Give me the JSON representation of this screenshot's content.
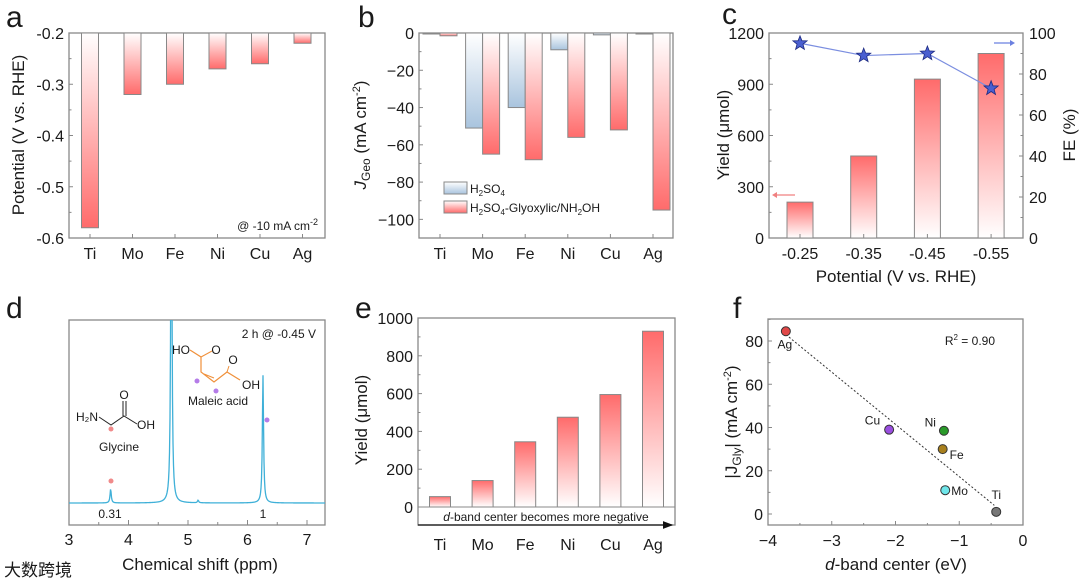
{
  "panel_letters": [
    "a",
    "b",
    "c",
    "d",
    "e",
    "f"
  ],
  "watermark": "大数跨境",
  "chart_data": [
    {
      "id": "a",
      "type": "bar",
      "categories": [
        "Ti",
        "Mo",
        "Fe",
        "Ni",
        "Cu",
        "Ag"
      ],
      "values": [
        -0.58,
        -0.32,
        -0.3,
        -0.27,
        -0.26,
        -0.22
      ],
      "ylabel": "Potential (V vs. RHE)",
      "ylim": [
        -0.6,
        -0.2
      ],
      "yticks": [
        "-0.2",
        "-0.3",
        "-0.4",
        "-0.5",
        "-0.6"
      ],
      "annotation": {
        "text": "@ -10 mA cm",
        "sup": "-2"
      }
    },
    {
      "id": "b",
      "type": "bar",
      "categories": [
        "Ti",
        "Mo",
        "Fe",
        "Ni",
        "Cu",
        "Ag"
      ],
      "series": [
        {
          "name": "H2SO4",
          "label_parts": [
            "H",
            "2",
            "SO",
            "4"
          ],
          "values": [
            -0.5,
            -51,
            -40,
            -9,
            -1,
            -0.5
          ],
          "color": "#a9c4de"
        },
        {
          "name": "H2SO4-Glyoxylic/NH2OH",
          "label_parts": [
            "H",
            "2",
            "SO",
            "4",
            "-Glyoxylic/NH",
            "2",
            "OH"
          ],
          "values": [
            -1.5,
            -65,
            -68,
            -56,
            -52,
            -95
          ],
          "color": "#ff6b6b"
        }
      ],
      "ylabel": {
        "main": "J",
        "sub": "Geo",
        "rest": " (mA cm",
        "sup": "-2",
        "end": ")"
      },
      "ylim": [
        -110,
        0
      ],
      "yticks": [
        "0",
        "−20",
        "−40",
        "−60",
        "−80",
        "−100"
      ],
      "legend": "bottom-left"
    },
    {
      "id": "c",
      "type": "bar+line",
      "categories": [
        "-0.25",
        "-0.35",
        "-0.45",
        "-0.55"
      ],
      "series": [
        {
          "name": "Yield",
          "axis": "left",
          "values": [
            210,
            480,
            930,
            1080
          ],
          "color": "#ff6b6b"
        },
        {
          "name": "FE",
          "axis": "right",
          "values": [
            95,
            89,
            90,
            73
          ],
          "color": "#4a5fd0"
        }
      ],
      "xlabel": "Potential (V vs. RHE)",
      "ylabel": "Yield (μmol)",
      "y2label": "FE (%)",
      "ylim": [
        0,
        1200
      ],
      "y2lim": [
        0,
        100
      ],
      "yticks": [
        "0",
        "300",
        "600",
        "900",
        "1200"
      ],
      "y2ticks": [
        "0",
        "20",
        "40",
        "60",
        "80",
        "100"
      ]
    },
    {
      "id": "d",
      "type": "line",
      "xlabel": "Chemical shift (ppm)",
      "xlim": [
        3,
        7.3
      ],
      "xticks": [
        "3",
        "4",
        "5",
        "6",
        "7"
      ],
      "peaks": [
        {
          "ppm": 3.7,
          "rel_height": 0.11
        },
        {
          "ppm": 4.72,
          "rel_height": 3.0
        },
        {
          "ppm": 5.17,
          "rel_height": 0.02
        },
        {
          "ppm": 6.26,
          "rel_height": 1.0
        }
      ],
      "integrals": [
        "0.31",
        "1"
      ],
      "condition": "2 h @ -0.45 V",
      "glycine": {
        "name": "Glycine",
        "amine": "H₂N",
        "carbonyl": "O",
        "hydroxyl": "OH"
      },
      "maleic": {
        "name": "Maleic acid",
        "ho": "HO",
        "o1": "O",
        "o2": "O",
        "oh": "OH"
      },
      "colors": {
        "spectrum": "#3fb0d8",
        "glycine_dot": "#f08a8a",
        "maleic_dot": "#b57ce8",
        "maleic": "#f0903a"
      }
    },
    {
      "id": "e",
      "type": "bar",
      "categories": [
        "Ti",
        "Mo",
        "Fe",
        "Ni",
        "Cu",
        "Ag"
      ],
      "values": [
        55,
        140,
        345,
        475,
        595,
        930
      ],
      "ylabel": "Yield (μmol)",
      "ylim": [
        0,
        1000
      ],
      "yticks": [
        "0",
        "200",
        "400",
        "600",
        "800",
        "1000"
      ],
      "arrow_text": {
        "italic": "d",
        "rest": "-band center becomes more negative"
      }
    },
    {
      "id": "f",
      "type": "scatter",
      "points": [
        {
          "label": "Ag",
          "x": -3.72,
          "y": 84.5,
          "color": "#e04848"
        },
        {
          "label": "Cu",
          "x": -2.1,
          "y": 39.0,
          "color": "#9a4fe0"
        },
        {
          "label": "Ni",
          "x": -1.24,
          "y": 38.5,
          "color": "#2a9a2a"
        },
        {
          "label": "Fe",
          "x": -1.26,
          "y": 30.0,
          "color": "#a8801e"
        },
        {
          "label": "Mo",
          "x": -1.22,
          "y": 11.0,
          "color": "#6fe6ea"
        },
        {
          "label": "Ti",
          "x": -0.42,
          "y": 1.0,
          "color": "#777777"
        }
      ],
      "fit": {
        "x": [
          -3.72,
          -0.45
        ],
        "y": [
          83,
          4
        ],
        "r2_text": "R",
        "r2_sup": "2",
        "r2_value": " = 0.90"
      },
      "xlabel": {
        "italic": "d",
        "rest": "-band center (eV)"
      },
      "ylabel": {
        "pre": "|J",
        "sub": "Gly",
        "mid": "| (mA cm",
        "sup": "-2",
        "end": ")"
      },
      "xlim": [
        -4,
        0
      ],
      "ylim": [
        -5,
        90
      ],
      "xticks": [
        "−4",
        "−3",
        "−2",
        "−1",
        "0"
      ],
      "yticks": [
        "0",
        "20",
        "40",
        "60",
        "80"
      ]
    }
  ]
}
